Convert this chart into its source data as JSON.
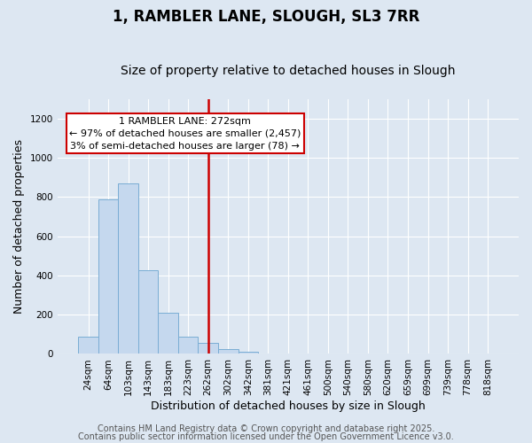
{
  "title": "1, RAMBLER LANE, SLOUGH, SL3 7RR",
  "subtitle": "Size of property relative to detached houses in Slough",
  "xlabel": "Distribution of detached houses by size in Slough",
  "ylabel": "Number of detached properties",
  "annotation_line0": "1 RAMBLER LANE: 272sqm",
  "annotation_line1": "← 97% of detached houses are smaller (2,457)",
  "annotation_line2": "3% of semi-detached houses are larger (78) →",
  "bar_color": "#c5d8ee",
  "bar_edge_color": "#7aadd4",
  "vline_color": "#cc0000",
  "annotation_box_color": "#ffffff",
  "annotation_box_edge": "#cc0000",
  "background_color": "#dde7f2",
  "footer1": "Contains HM Land Registry data © Crown copyright and database right 2025.",
  "footer2": "Contains public sector information licensed under the Open Government Licence v3.0.",
  "categories": [
    "24sqm",
    "64sqm",
    "103sqm",
    "143sqm",
    "183sqm",
    "223sqm",
    "262sqm",
    "302sqm",
    "342sqm",
    "381sqm",
    "421sqm",
    "461sqm",
    "500sqm",
    "540sqm",
    "580sqm",
    "620sqm",
    "659sqm",
    "699sqm",
    "739sqm",
    "778sqm",
    "818sqm"
  ],
  "values": [
    90,
    790,
    870,
    425,
    210,
    90,
    55,
    25,
    10,
    3,
    2,
    0,
    0,
    0,
    0,
    0,
    0,
    0,
    0,
    3,
    0
  ],
  "ylim": [
    0,
    1300
  ],
  "yticks": [
    0,
    200,
    400,
    600,
    800,
    1000,
    1200
  ],
  "vline_x_index": 6,
  "title_fontsize": 12,
  "subtitle_fontsize": 10,
  "axis_label_fontsize": 9,
  "tick_fontsize": 7.5,
  "annotation_fontsize": 8,
  "footer_fontsize": 7
}
